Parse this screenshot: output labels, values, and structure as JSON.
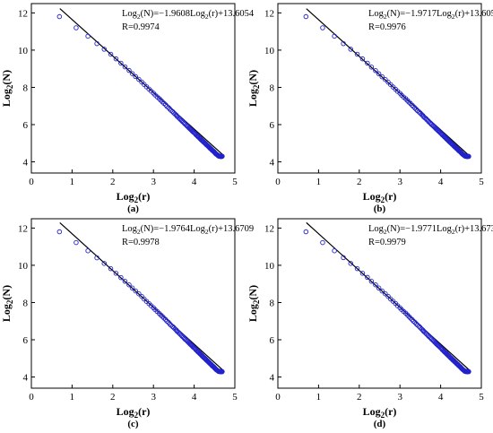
{
  "colors": {
    "marker": "#2222cc",
    "fit_line": "#000000",
    "axes": "#000000"
  },
  "chart_data": [
    {
      "type": "scatter",
      "panel_label": "(a)",
      "xlabel_base": "Log",
      "xlabel_sub": "2",
      "xlabel_arg": "(r)",
      "ylabel_base": "Log",
      "ylabel_sub": "2",
      "ylabel_arg": "(N)",
      "xlim": [
        0,
        5
      ],
      "ylim": [
        3.4,
        12.5
      ],
      "xticks": [
        0,
        1,
        2,
        3,
        4,
        5
      ],
      "yticks": [
        4,
        6,
        8,
        10,
        12
      ],
      "annotation": {
        "l1": "Log",
        "s1": "2",
        "m1": "(N)=−1.9608Log",
        "s2": "2",
        "m2": "(r)+13.6054",
        "r_text": "R=0.9974"
      },
      "fit": {
        "slope": -1.9608,
        "intercept": 13.6054,
        "x_range": [
          0.7,
          4.7
        ]
      },
      "marker": "open-circle",
      "x": [
        0.69,
        1.1,
        1.39,
        1.61,
        1.79,
        1.95,
        2.08,
        2.2,
        2.3,
        2.4,
        2.48,
        2.56,
        2.64,
        2.71,
        2.77,
        2.83,
        2.89,
        2.94,
        3.0,
        3.04,
        3.09,
        3.14,
        3.18,
        3.22,
        3.26,
        3.3,
        3.33,
        3.37,
        3.4,
        3.43,
        3.47,
        3.5,
        3.53,
        3.56,
        3.58,
        3.61,
        3.64,
        3.66,
        3.69,
        3.71,
        3.74,
        3.76,
        3.78,
        3.81,
        3.83,
        3.85,
        3.87,
        3.89,
        3.91,
        3.93,
        3.95,
        3.97,
        3.99,
        4.01,
        4.03,
        4.04,
        4.06,
        4.08,
        4.09,
        4.11,
        4.13,
        4.14,
        4.16,
        4.17,
        4.19,
        4.2,
        4.22,
        4.23,
        4.25,
        4.26,
        4.28,
        4.29,
        4.3,
        4.32,
        4.33,
        4.34,
        4.36,
        4.37,
        4.38,
        4.39,
        4.41,
        4.42,
        4.43,
        4.44,
        4.45,
        4.47,
        4.48,
        4.49,
        4.5,
        4.51,
        4.52,
        4.53,
        4.54,
        4.55,
        4.57,
        4.58,
        4.59,
        4.6,
        4.61,
        4.62,
        4.63,
        4.64,
        4.65,
        4.66,
        4.67,
        4.68,
        4.69
      ],
      "y": [
        11.8,
        11.2,
        10.75,
        10.35,
        10.05,
        9.78,
        9.53,
        9.3,
        9.1,
        8.91,
        8.74,
        8.58,
        8.43,
        8.29,
        8.16,
        8.03,
        7.91,
        7.8,
        7.69,
        7.59,
        7.49,
        7.4,
        7.31,
        7.22,
        7.14,
        7.06,
        6.98,
        6.91,
        6.84,
        6.77,
        6.7,
        6.63,
        6.57,
        6.51,
        6.45,
        6.39,
        6.33,
        6.28,
        6.22,
        6.17,
        6.12,
        6.07,
        6.02,
        5.97,
        5.92,
        5.88,
        5.83,
        5.79,
        5.75,
        5.71,
        5.66,
        5.62,
        5.58,
        5.55,
        5.51,
        5.47,
        5.43,
        5.4,
        5.36,
        5.33,
        5.29,
        5.26,
        5.23,
        5.19,
        5.16,
        5.13,
        5.1,
        5.07,
        5.04,
        5.01,
        4.98,
        4.95,
        4.92,
        4.89,
        4.87,
        4.84,
        4.81,
        4.79,
        4.76,
        4.73,
        4.71,
        4.68,
        4.66,
        4.63,
        4.61,
        4.58,
        4.56,
        4.54,
        4.51,
        4.49,
        4.47,
        4.44,
        4.42,
        4.4,
        4.38,
        4.36,
        4.33,
        4.31,
        4.32,
        4.3,
        4.31,
        4.29,
        4.3,
        4.28,
        4.3,
        4.29,
        4.3
      ]
    },
    {
      "type": "scatter",
      "panel_label": "(b)",
      "xlabel_base": "Log",
      "xlabel_sub": "2",
      "xlabel_arg": "(r)",
      "ylabel_base": "Log",
      "ylabel_sub": "2",
      "ylabel_arg": "(N)",
      "xlim": [
        0,
        5
      ],
      "ylim": [
        3.4,
        12.5
      ],
      "xticks": [
        0,
        1,
        2,
        3,
        4,
        5
      ],
      "yticks": [
        4,
        6,
        8,
        10,
        12
      ],
      "annotation": {
        "l1": "Log",
        "s1": "2",
        "m1": "(N)=−1.9717Log",
        "s2": "2",
        "m2": "(r)+13.605",
        "r_text": "R=0.9976"
      },
      "fit": {
        "slope": -1.9717,
        "intercept": 13.605,
        "x_range": [
          0.7,
          4.7
        ]
      },
      "marker": "open-circle",
      "x": [
        0.69,
        1.1,
        1.39,
        1.61,
        1.79,
        1.95,
        2.08,
        2.2,
        2.3,
        2.4,
        2.48,
        2.56,
        2.64,
        2.71,
        2.77,
        2.83,
        2.89,
        2.94,
        3.0,
        3.04,
        3.09,
        3.14,
        3.18,
        3.22,
        3.26,
        3.3,
        3.33,
        3.37,
        3.4,
        3.43,
        3.47,
        3.5,
        3.53,
        3.56,
        3.58,
        3.61,
        3.64,
        3.66,
        3.69,
        3.71,
        3.74,
        3.76,
        3.78,
        3.81,
        3.83,
        3.85,
        3.87,
        3.89,
        3.91,
        3.93,
        3.95,
        3.97,
        3.99,
        4.01,
        4.03,
        4.04,
        4.06,
        4.08,
        4.09,
        4.11,
        4.13,
        4.14,
        4.16,
        4.17,
        4.19,
        4.2,
        4.22,
        4.23,
        4.25,
        4.26,
        4.28,
        4.29,
        4.3,
        4.32,
        4.33,
        4.34,
        4.36,
        4.37,
        4.38,
        4.39,
        4.41,
        4.42,
        4.43,
        4.44,
        4.45,
        4.47,
        4.48,
        4.49,
        4.5,
        4.51,
        4.52,
        4.53,
        4.54,
        4.55,
        4.57,
        4.58,
        4.59,
        4.6,
        4.61,
        4.62,
        4.63,
        4.64,
        4.65,
        4.66,
        4.67,
        4.68,
        4.69
      ],
      "y": [
        11.8,
        11.2,
        10.75,
        10.35,
        10.05,
        9.78,
        9.53,
        9.3,
        9.09,
        8.9,
        8.73,
        8.57,
        8.42,
        8.28,
        8.15,
        8.02,
        7.9,
        7.79,
        7.68,
        7.58,
        7.48,
        7.39,
        7.3,
        7.21,
        7.13,
        7.04,
        6.97,
        6.89,
        6.82,
        6.75,
        6.68,
        6.62,
        6.55,
        6.49,
        6.43,
        6.37,
        6.32,
        6.26,
        6.21,
        6.15,
        6.1,
        6.05,
        6.0,
        5.95,
        5.91,
        5.86,
        5.82,
        5.77,
        5.73,
        5.69,
        5.65,
        5.61,
        5.57,
        5.53,
        5.49,
        5.45,
        5.42,
        5.38,
        5.35,
        5.31,
        5.28,
        5.24,
        5.21,
        5.18,
        5.15,
        5.11,
        5.08,
        5.05,
        5.02,
        4.99,
        4.96,
        4.93,
        4.91,
        4.88,
        4.85,
        4.82,
        4.8,
        4.77,
        4.74,
        4.72,
        4.69,
        4.67,
        4.64,
        4.62,
        4.59,
        4.57,
        4.55,
        4.52,
        4.5,
        4.48,
        4.45,
        4.43,
        4.41,
        4.39,
        4.37,
        4.34,
        4.32,
        4.31,
        4.3,
        4.31,
        4.29,
        4.3,
        4.28,
        4.3,
        4.29,
        4.3,
        4.29
      ]
    },
    {
      "type": "scatter",
      "panel_label": "(c)",
      "xlabel_base": "Log",
      "xlabel_sub": "2",
      "xlabel_arg": "(r)",
      "ylabel_base": "Log",
      "ylabel_sub": "2",
      "ylabel_arg": "(N)",
      "xlim": [
        0,
        5
      ],
      "ylim": [
        3.4,
        12.5
      ],
      "xticks": [
        0,
        1,
        2,
        3,
        4,
        5
      ],
      "yticks": [
        4,
        6,
        8,
        10,
        12
      ],
      "annotation": {
        "l1": "Log",
        "s1": "2",
        "m1": "(N)=−1.9764Log",
        "s2": "2",
        "m2": "(r)+13.6709",
        "r_text": "R=0.9978"
      },
      "fit": {
        "slope": -1.9764,
        "intercept": 13.6709,
        "x_range": [
          0.7,
          4.7
        ]
      },
      "marker": "open-circle",
      "x": [
        0.69,
        1.1,
        1.39,
        1.61,
        1.79,
        1.95,
        2.08,
        2.2,
        2.3,
        2.4,
        2.48,
        2.56,
        2.64,
        2.71,
        2.77,
        2.83,
        2.89,
        2.94,
        3.0,
        3.04,
        3.09,
        3.14,
        3.18,
        3.22,
        3.26,
        3.3,
        3.33,
        3.37,
        3.4,
        3.43,
        3.47,
        3.5,
        3.53,
        3.56,
        3.58,
        3.61,
        3.64,
        3.66,
        3.69,
        3.71,
        3.74,
        3.76,
        3.78,
        3.81,
        3.83,
        3.85,
        3.87,
        3.89,
        3.91,
        3.93,
        3.95,
        3.97,
        3.99,
        4.01,
        4.03,
        4.04,
        4.06,
        4.08,
        4.09,
        4.11,
        4.13,
        4.14,
        4.16,
        4.17,
        4.19,
        4.2,
        4.22,
        4.23,
        4.25,
        4.26,
        4.28,
        4.29,
        4.3,
        4.32,
        4.33,
        4.34,
        4.36,
        4.37,
        4.38,
        4.39,
        4.41,
        4.42,
        4.43,
        4.44,
        4.45,
        4.47,
        4.48,
        4.49,
        4.5,
        4.51,
        4.52,
        4.53,
        4.54,
        4.55,
        4.57,
        4.58,
        4.59,
        4.6,
        4.61,
        4.62,
        4.63,
        4.64,
        4.65,
        4.66,
        4.67,
        4.68,
        4.69
      ],
      "y": [
        11.8,
        11.22,
        10.78,
        10.4,
        10.1,
        9.82,
        9.57,
        9.34,
        9.14,
        8.95,
        8.78,
        8.62,
        8.47,
        8.33,
        8.19,
        8.06,
        7.94,
        7.83,
        7.72,
        7.62,
        7.52,
        7.42,
        7.33,
        7.25,
        7.16,
        7.08,
        7.0,
        6.93,
        6.85,
        6.78,
        6.71,
        6.65,
        6.58,
        6.52,
        6.46,
        6.4,
        6.34,
        6.29,
        6.23,
        6.18,
        6.13,
        6.07,
        6.02,
        5.98,
        5.93,
        5.88,
        5.84,
        5.79,
        5.75,
        5.71,
        5.67,
        5.62,
        5.58,
        5.55,
        5.51,
        5.47,
        5.43,
        5.39,
        5.36,
        5.32,
        5.29,
        5.26,
        5.22,
        5.19,
        5.16,
        5.12,
        5.09,
        5.06,
        5.03,
        5.0,
        4.97,
        4.94,
        4.91,
        4.88,
        4.86,
        4.83,
        4.8,
        4.77,
        4.75,
        4.72,
        4.69,
        4.67,
        4.64,
        4.62,
        4.59,
        4.57,
        4.54,
        4.52,
        4.5,
        4.47,
        4.45,
        4.43,
        4.4,
        4.38,
        4.36,
        4.34,
        4.32,
        4.3,
        4.31,
        4.29,
        4.3,
        4.28,
        4.3,
        4.29,
        4.3,
        4.28,
        4.29
      ]
    },
    {
      "type": "scatter",
      "panel_label": "(d)",
      "xlabel_base": "Log",
      "xlabel_sub": "2",
      "xlabel_arg": "(r)",
      "ylabel_base": "Log",
      "ylabel_sub": "2",
      "ylabel_arg": "(N)",
      "xlim": [
        0,
        5
      ],
      "ylim": [
        3.4,
        12.5
      ],
      "xticks": [
        0,
        1,
        2,
        3,
        4,
        5
      ],
      "yticks": [
        4,
        6,
        8,
        10,
        12
      ],
      "annotation": {
        "l1": "Log",
        "s1": "2",
        "m1": "(N)=−1.9771Log",
        "s2": "2",
        "m2": "(r)+13.6736",
        "r_text": "R=0.9979"
      },
      "fit": {
        "slope": -1.9771,
        "intercept": 13.6736,
        "x_range": [
          0.7,
          4.7
        ]
      },
      "marker": "open-circle",
      "x": [
        0.69,
        1.1,
        1.39,
        1.61,
        1.79,
        1.95,
        2.08,
        2.2,
        2.3,
        2.4,
        2.48,
        2.56,
        2.64,
        2.71,
        2.77,
        2.83,
        2.89,
        2.94,
        3.0,
        3.04,
        3.09,
        3.14,
        3.18,
        3.22,
        3.26,
        3.3,
        3.33,
        3.37,
        3.4,
        3.43,
        3.47,
        3.5,
        3.53,
        3.56,
        3.58,
        3.61,
        3.64,
        3.66,
        3.69,
        3.71,
        3.74,
        3.76,
        3.78,
        3.81,
        3.83,
        3.85,
        3.87,
        3.89,
        3.91,
        3.93,
        3.95,
        3.97,
        3.99,
        4.01,
        4.03,
        4.04,
        4.06,
        4.08,
        4.09,
        4.11,
        4.13,
        4.14,
        4.16,
        4.17,
        4.19,
        4.2,
        4.22,
        4.23,
        4.25,
        4.26,
        4.28,
        4.29,
        4.3,
        4.32,
        4.33,
        4.34,
        4.36,
        4.37,
        4.38,
        4.39,
        4.41,
        4.42,
        4.43,
        4.44,
        4.45,
        4.47,
        4.48,
        4.49,
        4.5,
        4.51,
        4.52,
        4.53,
        4.54,
        4.55,
        4.57,
        4.58,
        4.59,
        4.6,
        4.61,
        4.62,
        4.63,
        4.64,
        4.65,
        4.66,
        4.67,
        4.68,
        4.69
      ],
      "y": [
        11.8,
        11.22,
        10.78,
        10.41,
        10.1,
        9.82,
        9.57,
        9.35,
        9.14,
        8.95,
        8.78,
        8.62,
        8.47,
        8.33,
        8.19,
        8.07,
        7.95,
        7.83,
        7.72,
        7.62,
        7.52,
        7.43,
        7.34,
        7.25,
        7.16,
        7.08,
        7.0,
        6.93,
        6.86,
        6.79,
        6.72,
        6.65,
        6.58,
        6.52,
        6.46,
        6.4,
        6.34,
        6.29,
        6.23,
        6.18,
        6.13,
        6.08,
        6.03,
        5.98,
        5.93,
        5.88,
        5.84,
        5.79,
        5.75,
        5.71,
        5.67,
        5.63,
        5.59,
        5.55,
        5.51,
        5.47,
        5.43,
        5.39,
        5.36,
        5.32,
        5.29,
        5.26,
        5.22,
        5.19,
        5.16,
        5.13,
        5.09,
        5.06,
        5.03,
        5.0,
        4.97,
        4.94,
        4.91,
        4.89,
        4.86,
        4.83,
        4.8,
        4.78,
        4.75,
        4.72,
        4.7,
        4.67,
        4.65,
        4.62,
        4.6,
        4.57,
        4.55,
        4.52,
        4.5,
        4.48,
        4.45,
        4.43,
        4.41,
        4.39,
        4.36,
        4.34,
        4.32,
        4.3,
        4.31,
        4.29,
        4.3,
        4.28,
        4.3,
        4.29,
        4.3,
        4.28,
        4.29
      ]
    }
  ]
}
